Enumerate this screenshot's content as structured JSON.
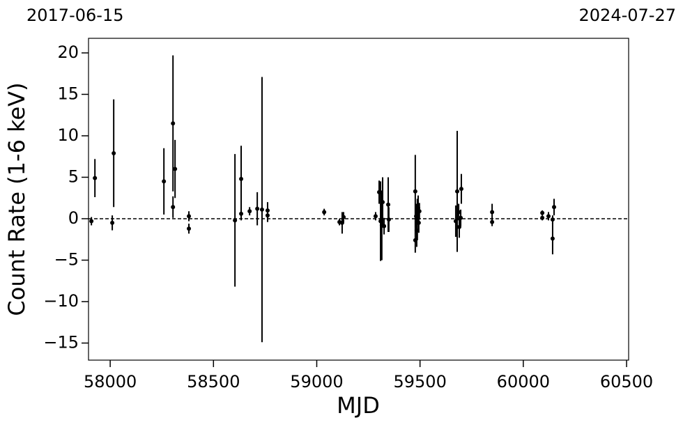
{
  "chart_data": {
    "type": "errorbar",
    "x_label": "MJD",
    "y_label": "Count Rate (1-6 keV)",
    "top_left_label": "2017-06-15",
    "top_right_label": "2024-07-27",
    "xlim": [
      57895,
      60510
    ],
    "ylim": [
      -17.06,
      21.76
    ],
    "xticks": [
      58000,
      58500,
      59000,
      59500,
      60000,
      60500
    ],
    "yticks": [
      {
        "value": -15,
        "label": "−15"
      },
      {
        "value": -10,
        "label": "−10"
      },
      {
        "value": -5,
        "label": "−5"
      },
      0,
      5,
      10,
      15,
      20
    ],
    "hline": 0,
    "color": "#000000",
    "x": [
      57909,
      57926,
      58010,
      58017,
      58260,
      58304,
      58304,
      58314,
      58381,
      58381,
      58604,
      58634,
      58634,
      58675,
      58712,
      58735,
      58762,
      58762,
      59036,
      59110,
      59123,
      59130,
      59285,
      59302,
      59309,
      59315,
      59319,
      59326,
      59346,
      59349,
      59477,
      59477,
      59481,
      59484,
      59487,
      59491,
      59494,
      59497,
      59680,
      59673,
      59687,
      59690,
      59697,
      59700,
      59849,
      59849,
      60092,
      60092,
      60122,
      60142,
      60142,
      60149
    ],
    "values": [
      -0.3,
      4.9,
      -0.5,
      7.9,
      4.5,
      11.5,
      1.4,
      6.0,
      0.3,
      -1.2,
      -0.2,
      4.8,
      0.6,
      0.9,
      1.2,
      1.1,
      1.0,
      0.4,
      0.8,
      -0.4,
      -0.5,
      0.2,
      0.3,
      3.2,
      -0.3,
      -0.8,
      2.0,
      -0.9,
      1.7,
      -0.1,
      3.3,
      -2.6,
      0.3,
      -1.4,
      -0.1,
      1.3,
      -0.5,
      0.9,
      3.3,
      -0.3,
      0.8,
      -1.0,
      0.1,
      3.6,
      0.8,
      -0.4,
      0.7,
      0.1,
      0.3,
      -0.1,
      -2.4,
      1.4
    ],
    "errors": [
      0.5,
      2.3,
      0.9,
      6.5,
      4.0,
      8.2,
      1.3,
      3.5,
      0.6,
      0.6,
      8.0,
      4.0,
      0.8,
      0.5,
      2.0,
      16.0,
      1.0,
      0.8,
      0.4,
      0.4,
      1.3,
      0.6,
      0.5,
      1.4,
      4.8,
      4.2,
      3.0,
      1.0,
      3.3,
      1.5,
      4.4,
      1.5,
      1.5,
      2.0,
      2.5,
      1.5,
      1.2,
      1.0,
      7.3,
      1.9,
      1.0,
      1.3,
      1.0,
      1.8,
      1.0,
      0.5,
      0.3,
      0.3,
      0.5,
      0.5,
      1.9,
      1.0
    ]
  }
}
